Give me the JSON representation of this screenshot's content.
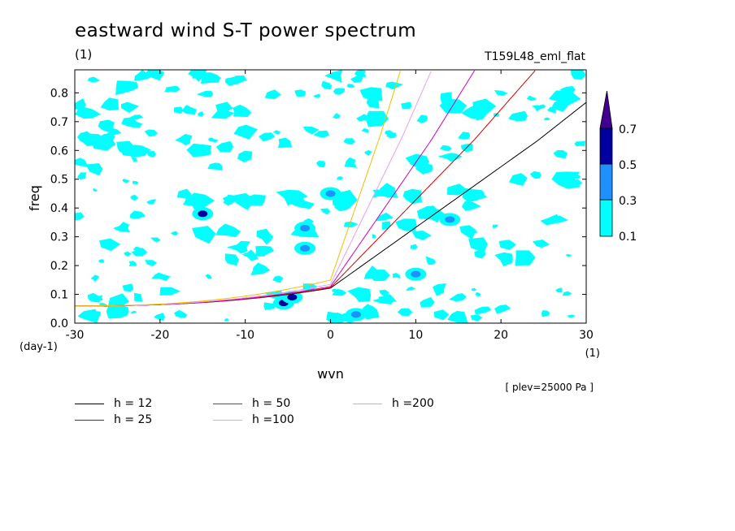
{
  "figure": {
    "title": "eastward wind S-T power spectrum",
    "unit_top": "(1)",
    "run_label": "T159L48_eml_flat",
    "plev_note": "[ plev=25000 Pa ]"
  },
  "chart_data": {
    "type": "contour",
    "xlabel": "wvn",
    "ylabel": "freq",
    "x_unit": "(1)",
    "y_unit": "(day-1)",
    "xlim": [
      -30,
      30
    ],
    "ylim": [
      0,
      0.88
    ],
    "x_ticks": [
      -30,
      -20,
      -10,
      0,
      10,
      20,
      30
    ],
    "y_ticks": [
      0.0,
      0.1,
      0.2,
      0.3,
      0.4,
      0.5,
      0.6,
      0.7,
      0.8
    ],
    "x_tick_labels": [
      "-30",
      "-20",
      "-10",
      "0",
      "10",
      "20",
      "30"
    ],
    "y_tick_labels": [
      "0.0",
      "0.1",
      "0.2",
      "0.3",
      "0.4",
      "0.5",
      "0.6",
      "0.7",
      "0.8"
    ],
    "colorbar": {
      "levels": [
        0.1,
        0.3,
        0.5,
        0.7
      ],
      "labels": [
        "0.1",
        "0.3",
        "0.5",
        "0.7"
      ],
      "colors": [
        "#00ffff",
        "#1e90ff",
        "#0000a0",
        "#400090"
      ]
    },
    "dispersion_curves": [
      {
        "name": "h = 12",
        "h": 12,
        "color": "#000000"
      },
      {
        "name": "h = 25",
        "h": 25,
        "color": "#d00000"
      },
      {
        "name": "h = 50",
        "h": 50,
        "color": "#d000c0"
      },
      {
        "name": "h =100",
        "h": 100,
        "color": "#e8a0e8"
      },
      {
        "name": "h =200",
        "h": 200,
        "color": "#f0c000"
      }
    ],
    "patches": [
      {
        "x": -5.5,
        "y": 0.07,
        "level": 0.5
      },
      {
        "x": -4.5,
        "y": 0.09,
        "level": 0.5
      },
      {
        "x": -15,
        "y": 0.38,
        "level": 0.5
      },
      {
        "x": -3,
        "y": 0.26,
        "level": 0.3
      },
      {
        "x": -3,
        "y": 0.33,
        "level": 0.3
      },
      {
        "x": 0,
        "y": 0.45,
        "level": 0.3
      },
      {
        "x": 14,
        "y": 0.36,
        "level": 0.3
      },
      {
        "x": 10,
        "y": 0.17,
        "level": 0.3
      },
      {
        "x": 3,
        "y": 0.03,
        "level": 0.3
      }
    ]
  }
}
